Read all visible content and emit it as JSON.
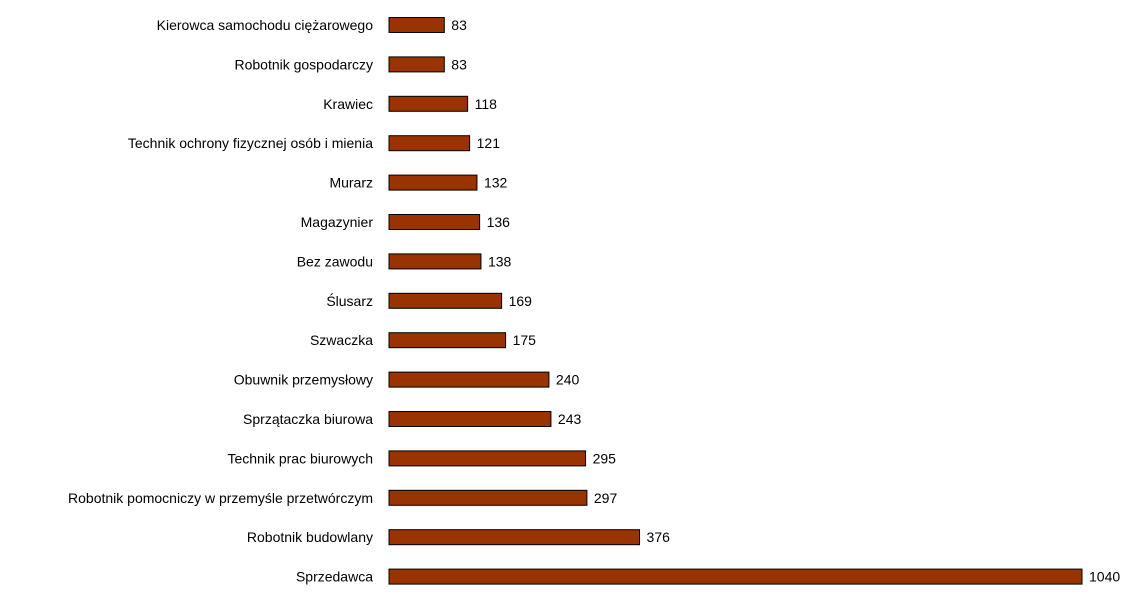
{
  "chart_data": {
    "type": "bar",
    "orientation": "horizontal",
    "title": "",
    "xlabel": "",
    "ylabel": "",
    "grid": false,
    "legend": "none",
    "bar_color": "#993300",
    "bar_border_color": "#000000",
    "xlim": [
      0,
      1040
    ],
    "categories": [
      "Kierowca samochodu ciężarowego",
      "Robotnik gospodarczy",
      "Krawiec",
      "Technik ochrony fizycznej osób i mienia",
      "Murarz",
      "Magazynier",
      "Bez zawodu",
      "Ślusarz",
      "Szwaczka",
      "Obuwnik przemysłowy",
      "Sprzątaczka biurowa",
      "Technik prac biurowych",
      "Robotnik pomocniczy w przemyśle przetwórczym",
      "Robotnik budowlany",
      "Sprzedawca"
    ],
    "values": [
      83,
      83,
      118,
      121,
      132,
      136,
      138,
      169,
      175,
      240,
      243,
      295,
      297,
      376,
      1040
    ]
  }
}
